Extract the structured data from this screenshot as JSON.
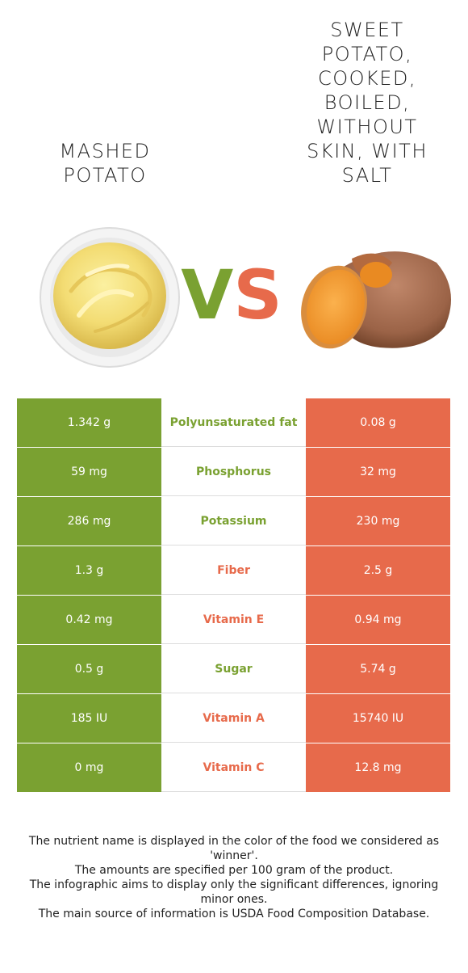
{
  "left_food": {
    "title": "MASHED POTATO",
    "color": "#7aa131",
    "image": "mashed-potato-bowl-icon"
  },
  "right_food": {
    "title": "SWEET POTATO, COOKED, BOILED, WITHOUT SKIN, WITH SALT",
    "color": "#e76a4b",
    "image": "sweet-potato-icon"
  },
  "vs": {
    "v": "V",
    "s": "S"
  },
  "rows": [
    {
      "left": "1.342 g",
      "nutrient": "Polyunsaturated fat",
      "right": "0.08 g",
      "winner": "left"
    },
    {
      "left": "59 mg",
      "nutrient": "Phosphorus",
      "right": "32 mg",
      "winner": "left"
    },
    {
      "left": "286 mg",
      "nutrient": "Potassium",
      "right": "230 mg",
      "winner": "left"
    },
    {
      "left": "1.3 g",
      "nutrient": "Fiber",
      "right": "2.5 g",
      "winner": "right"
    },
    {
      "left": "0.42 mg",
      "nutrient": "Vitamin E",
      "right": "0.94 mg",
      "winner": "right"
    },
    {
      "left": "0.5 g",
      "nutrient": "Sugar",
      "right": "5.74 g",
      "winner": "left"
    },
    {
      "left": "185 IU",
      "nutrient": "Vitamin A",
      "right": "15740 IU",
      "winner": "right"
    },
    {
      "left": "0 mg",
      "nutrient": "Vitamin C",
      "right": "12.8 mg",
      "winner": "right"
    }
  ],
  "notes": [
    "The nutrient name is displayed in the color of the food we considered as 'winner'.",
    "The amounts are specified per 100 gram of the product.",
    "The infographic aims to display only the significant differences, ignoring minor ones.",
    "The main source of information is USDA Food Composition Database."
  ]
}
